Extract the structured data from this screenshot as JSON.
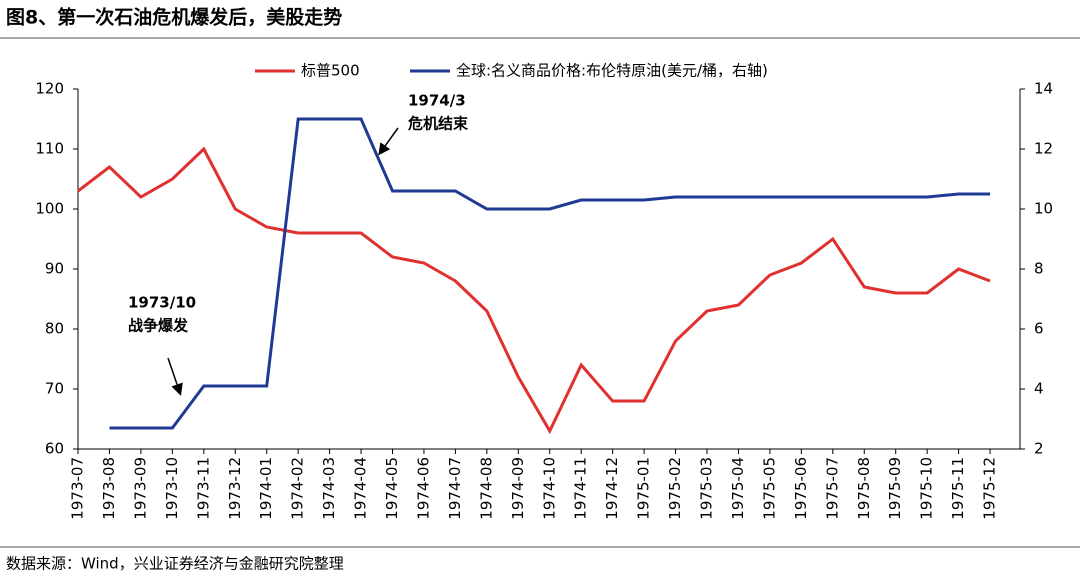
{
  "chart_data": {
    "type": "line",
    "title": "图8、第一次石油危机爆发后，美股走势",
    "source": "数据来源：Wind，兴业证券经济与金融研究院整理",
    "categories": [
      "1973-07",
      "1973-08",
      "1973-09",
      "1973-10",
      "1973-11",
      "1973-12",
      "1974-01",
      "1974-02",
      "1974-03",
      "1974-04",
      "1974-05",
      "1974-06",
      "1974-07",
      "1974-08",
      "1974-09",
      "1974-10",
      "1974-11",
      "1974-12",
      "1975-01",
      "1975-02",
      "1975-03",
      "1975-04",
      "1975-05",
      "1975-06",
      "1975-07",
      "1975-08",
      "1975-09",
      "1975-10",
      "1975-11",
      "1975-12"
    ],
    "series": [
      {
        "name": "标普500",
        "color": "#e03030",
        "values": [
          103,
          107,
          102,
          105,
          110,
          100,
          97,
          96,
          96,
          96,
          92,
          91,
          88,
          83,
          72,
          63,
          74,
          68,
          68,
          78,
          83,
          84,
          89,
          91,
          95,
          87,
          86,
          86,
          90,
          88
        ]
      },
      {
        "name": "全球:名义商品价格:布伦特原油(美元/桶，右轴)",
        "color": "#1f3a93",
        "axis": "y2",
        "values": [
          null,
          2.7,
          2.7,
          2.7,
          4.1,
          4.1,
          4.1,
          13,
          13,
          13,
          10.6,
          10.6,
          10.6,
          10,
          10,
          10,
          10.3,
          10.3,
          10.3,
          10.4,
          10.4,
          10.4,
          10.4,
          10.4,
          10.4,
          10.4,
          10.4,
          10.4,
          10.5,
          10.5
        ]
      }
    ],
    "ylim": [
      60,
      120
    ],
    "yticks": [
      60,
      70,
      80,
      90,
      100,
      110,
      120
    ],
    "y2lim": [
      2,
      14
    ],
    "y2ticks": [
      2,
      4,
      6,
      8,
      10,
      12,
      14
    ],
    "annotations": [
      {
        "lines": [
          "1974/3",
          "危机结束"
        ]
      },
      {
        "lines": [
          "1973/10",
          "战争爆发"
        ]
      }
    ]
  }
}
